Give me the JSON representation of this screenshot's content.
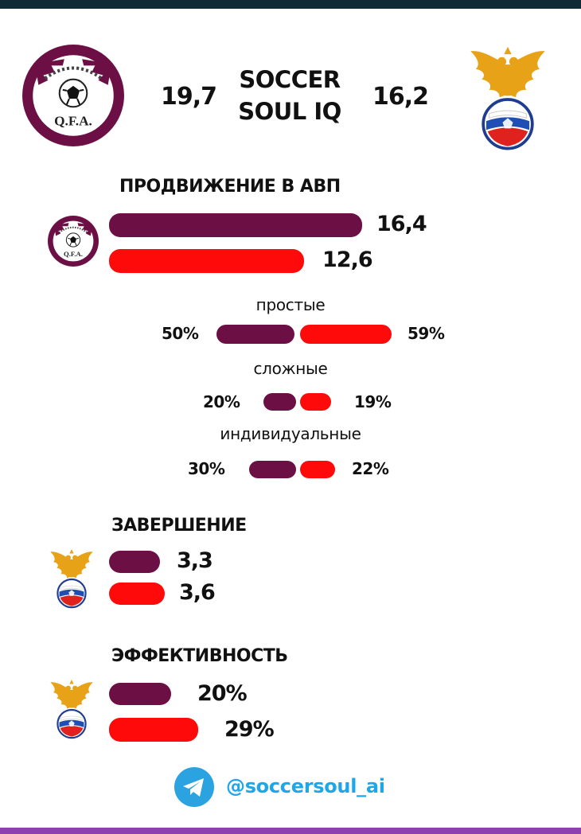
{
  "header": {
    "team_left_logo": "qatar-fa-crest",
    "team_right_logo": "russia-fu-crest",
    "brand_line1": "SOCCER",
    "brand_line2": "SOUL IQ",
    "score_left": "19,7",
    "score_right": "16,2"
  },
  "progression": {
    "title": "ПРОДВИЖЕНИЕ  В АВП",
    "leader_logo": "qatar-fa-crest",
    "qatar_value": "16,4",
    "russia_value": "12,6",
    "breakdown": [
      {
        "label": "простые",
        "qatar": "50%",
        "russia": "59%"
      },
      {
        "label": "сложные",
        "qatar": "20%",
        "russia": "19%"
      },
      {
        "label": "индивидуальные",
        "qatar": "30%",
        "russia": "22%"
      }
    ]
  },
  "finishing": {
    "title": "ЗАВЕРШЕНИЕ",
    "leader_logo": "russia-fu-crest",
    "qatar_value": "3,3",
    "russia_value": "3,6"
  },
  "efficiency": {
    "title": "ЭФФЕКТИВНОСТЬ",
    "leader_logo": "russia-fu-crest",
    "qatar_value": "20%",
    "russia_value": "29%"
  },
  "footer": {
    "icon": "telegram-icon",
    "handle": "@soccersoul_ai"
  },
  "colors": {
    "qatar": "#6b0f45",
    "russia": "#ff0a0a",
    "top_bar": "#0f2a35",
    "bottom_bar": "#8e3fb0",
    "telegram": "#2aa3e0"
  }
}
